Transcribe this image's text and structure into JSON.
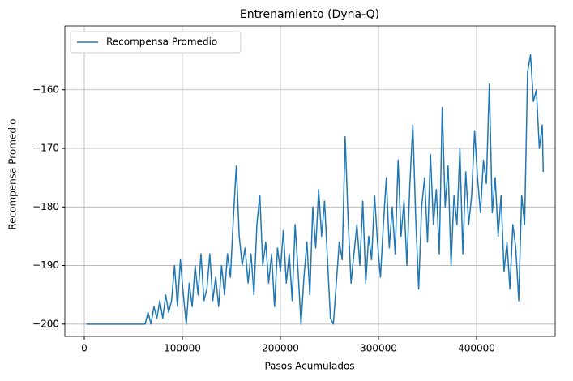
{
  "chart_data": {
    "type": "line",
    "title": "Entrenamiento (Dyna-Q)",
    "xlabel": "Pasos Acumulados",
    "ylabel": "Recompensa Promedio",
    "grid": true,
    "legend": "upper left",
    "xlim": [
      -19835,
      480165
    ],
    "ylim": [
      -202.1,
      -149.1
    ],
    "xticks": [
      0,
      100000,
      200000,
      300000,
      400000
    ],
    "yticks": [
      {
        "value": -200,
        "label": "−200"
      },
      {
        "value": -190,
        "label": "−190"
      },
      {
        "value": -180,
        "label": "−180"
      },
      {
        "value": -170,
        "label": "−170"
      },
      {
        "value": -160,
        "label": "−160"
      }
    ],
    "x": [
      2000,
      62000,
      65000,
      68000,
      71000,
      74000,
      77000,
      80000,
      83000,
      86000,
      89000,
      92000,
      95000,
      98000,
      101000,
      104000,
      107000,
      110000,
      113000,
      116000,
      119000,
      122000,
      125000,
      128000,
      131000,
      134000,
      137000,
      140000,
      143000,
      146000,
      149000,
      152000,
      155000,
      158000,
      161000,
      164000,
      167000,
      170000,
      173000,
      176000,
      179000,
      182000,
      185000,
      188000,
      191000,
      194000,
      197000,
      200000,
      203000,
      206000,
      209000,
      212000,
      215000,
      218000,
      221000,
      224000,
      227000,
      230000,
      233000,
      236000,
      239000,
      242000,
      245000,
      248000,
      251000,
      254000,
      257000,
      260000,
      263000,
      266000,
      269000,
      272000,
      275000,
      278000,
      281000,
      284000,
      287000,
      290000,
      293000,
      296000,
      299000,
      302000,
      305000,
      308000,
      311000,
      314000,
      317000,
      320000,
      323000,
      326000,
      329000,
      332000,
      335000,
      338000,
      341000,
      344000,
      347000,
      350000,
      353000,
      356000,
      359000,
      362000,
      365000,
      368000,
      371000,
      374000,
      377000,
      380000,
      383000,
      386000,
      389000,
      392000,
      395000,
      398000,
      401000,
      404000,
      407000,
      410000,
      413000,
      416000,
      419000,
      422000,
      425000,
      428000,
      431000,
      434000,
      437000,
      440000,
      443000,
      446000,
      449000,
      452000,
      455000,
      458000,
      461000,
      464000,
      467000,
      468000
    ],
    "series": [
      {
        "name": "Recompensa Promedio",
        "color": "#1f77b4",
        "values": [
          -200,
          -200,
          -198,
          -200,
          -197,
          -199,
          -196,
          -199,
          -195,
          -198,
          -196,
          -190,
          -197,
          -189,
          -195,
          -200,
          -193,
          -197,
          -190,
          -195,
          -188,
          -196,
          -194,
          -188,
          -196,
          -192,
          -197,
          -190,
          -195,
          -188,
          -192,
          -182,
          -173,
          -185,
          -190,
          -187,
          -193,
          -188,
          -195,
          -183,
          -178,
          -190,
          -186,
          -193,
          -188,
          -197,
          -187,
          -191,
          -184,
          -193,
          -188,
          -196,
          -183,
          -191,
          -200,
          -192,
          -186,
          -195,
          -180,
          -187,
          -177,
          -185,
          -179,
          -189,
          -199,
          -200,
          -193,
          -186,
          -189,
          -168,
          -182,
          -193,
          -188,
          -183,
          -190,
          -179,
          -193,
          -185,
          -189,
          -178,
          -186,
          -192,
          -183,
          -175,
          -187,
          -180,
          -188,
          -172,
          -185,
          -179,
          -190,
          -176,
          -166,
          -182,
          -194,
          -180,
          -175,
          -186,
          -171,
          -183,
          -177,
          -188,
          -163,
          -180,
          -173,
          -190,
          -178,
          -183,
          -170,
          -188,
          -174,
          -183,
          -178,
          -167,
          -175,
          -181,
          -172,
          -176,
          -159,
          -181,
          -175,
          -185,
          -178,
          -191,
          -186,
          -194,
          -183,
          -187,
          -196,
          -178,
          -183,
          -157,
          -154,
          -162,
          -160,
          -170,
          -166,
          -174
        ]
      }
    ]
  }
}
